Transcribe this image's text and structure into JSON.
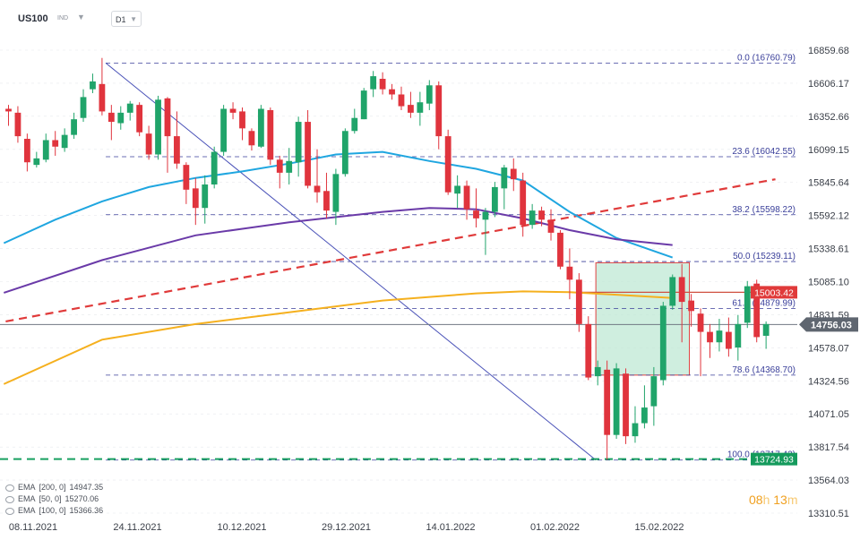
{
  "header": {
    "symbol": "US100",
    "category": "IND",
    "timeframe": "D1"
  },
  "chart_data": {
    "type": "candlestick",
    "y_ticks": [
      "16859.68",
      "16606.17",
      "16352.66",
      "16099.15",
      "15845.64",
      "15592.12",
      "15338.61",
      "15085.10",
      "14831.59",
      "14578.07",
      "14324.56",
      "14071.05",
      "13817.54",
      "13564.03",
      "13310.51"
    ],
    "x_ticks": [
      "08.11.2021",
      "24.11.2021",
      "10.12.2021",
      "29.12.2021",
      "14.01.2022",
      "01.02.2022",
      "15.02.2022"
    ],
    "current_price": "14756.03",
    "price_labels": [
      {
        "text": "15003.42",
        "value": 15003.42,
        "color": "#e03a3a"
      },
      {
        "text": "13724.93",
        "value": 13724.93,
        "color": "#149a5c"
      }
    ],
    "fib_levels": [
      {
        "label": "0.0 (16760.79)",
        "value": 16760.79
      },
      {
        "label": "23.6 (16042.55)",
        "value": 16042.55
      },
      {
        "label": "38.2 (15598.22)",
        "value": 15598.22
      },
      {
        "label": "50.0 (15239.11)",
        "value": 15239.11
      },
      {
        "label": "61.8 (14879.99)",
        "value": 14879.99
      },
      {
        "label": "78.6 (14368.70)",
        "value": 14368.7
      },
      {
        "label": "100.0 (13717.42)",
        "value": 13717.42
      }
    ],
    "candles": [
      [
        16410,
        16390,
        16280,
        16440
      ],
      [
        16380,
        16200,
        16150,
        16430
      ],
      [
        16180,
        16000,
        15930,
        16220
      ],
      [
        15980,
        16030,
        15960,
        16080
      ],
      [
        16020,
        16170,
        16000,
        16220
      ],
      [
        16170,
        16120,
        16050,
        16240
      ],
      [
        16110,
        16210,
        16080,
        16260
      ],
      [
        16210,
        16330,
        16180,
        16380
      ],
      [
        16340,
        16500,
        16310,
        16560
      ],
      [
        16560,
        16620,
        16530,
        16680
      ],
      [
        16600,
        16390,
        16360,
        16800
      ],
      [
        16380,
        16310,
        16170,
        16440
      ],
      [
        16300,
        16380,
        16250,
        16430
      ],
      [
        16380,
        16450,
        16320,
        16470
      ],
      [
        16440,
        16230,
        16200,
        16460
      ],
      [
        16220,
        16060,
        16020,
        16280
      ],
      [
        16060,
        16480,
        16020,
        16510
      ],
      [
        16490,
        16200,
        15920,
        16500
      ],
      [
        16200,
        15990,
        15950,
        16390
      ],
      [
        15980,
        15790,
        15680,
        16000
      ],
      [
        15800,
        15650,
        15520,
        15880
      ],
      [
        15650,
        15830,
        15530,
        15900
      ],
      [
        15830,
        16080,
        15800,
        16120
      ],
      [
        16080,
        16410,
        16050,
        16440
      ],
      [
        16410,
        16380,
        16330,
        16460
      ],
      [
        16390,
        16260,
        16170,
        16420
      ],
      [
        16240,
        16130,
        16090,
        16260
      ],
      [
        16120,
        16410,
        16110,
        16440
      ],
      [
        16400,
        16020,
        15980,
        16420
      ],
      [
        16020,
        15920,
        15800,
        16050
      ],
      [
        15920,
        16010,
        15830,
        16110
      ],
      [
        16000,
        16310,
        15890,
        16350
      ],
      [
        16310,
        15820,
        15800,
        16400
      ],
      [
        15820,
        15770,
        15690,
        16100
      ],
      [
        15780,
        15630,
        15570,
        15920
      ],
      [
        15620,
        15910,
        15520,
        15950
      ],
      [
        15910,
        16240,
        15890,
        16260
      ],
      [
        16240,
        16340,
        16220,
        16410
      ],
      [
        16330,
        16550,
        16330,
        16570
      ],
      [
        16560,
        16660,
        16500,
        16700
      ],
      [
        16640,
        16560,
        16520,
        16690
      ],
      [
        16560,
        16520,
        16480,
        16600
      ],
      [
        16520,
        16430,
        16400,
        16580
      ],
      [
        16440,
        16380,
        16340,
        16540
      ],
      [
        16380,
        16460,
        16280,
        16540
      ],
      [
        16450,
        16590,
        16400,
        16630
      ],
      [
        16590,
        16200,
        16100,
        16620
      ],
      [
        16200,
        15770,
        15750,
        16250
      ],
      [
        15760,
        15820,
        15650,
        15900
      ],
      [
        15820,
        15640,
        15560,
        15860
      ],
      [
        15630,
        15570,
        15500,
        15800
      ],
      [
        15560,
        15620,
        15290,
        15650
      ],
      [
        15620,
        15810,
        15580,
        15850
      ],
      [
        15800,
        15960,
        15640,
        15980
      ],
      [
        15950,
        15870,
        15780,
        16030
      ],
      [
        15860,
        15520,
        15430,
        15920
      ],
      [
        15520,
        15630,
        15490,
        15680
      ],
      [
        15630,
        15560,
        15510,
        15660
      ],
      [
        15560,
        15460,
        15400,
        15640
      ],
      [
        15460,
        15200,
        15180,
        15480
      ],
      [
        15200,
        15100,
        14950,
        15340
      ],
      [
        15100,
        14760,
        14700,
        15150
      ],
      [
        14760,
        14350,
        14330,
        14820
      ],
      [
        14360,
        14430,
        14290,
        14480
      ],
      [
        14410,
        13910,
        13720,
        14480
      ],
      [
        13910,
        14420,
        13880,
        14460
      ],
      [
        14380,
        13900,
        13840,
        14420
      ],
      [
        13900,
        14000,
        13850,
        14130
      ],
      [
        14000,
        14120,
        13960,
        14290
      ],
      [
        14130,
        14360,
        13980,
        14430
      ],
      [
        14330,
        14900,
        14290,
        14930
      ],
      [
        14900,
        15120,
        14870,
        15140
      ],
      [
        15120,
        14930,
        14620,
        15220
      ],
      [
        14940,
        14860,
        14740,
        14990
      ],
      [
        14840,
        14700,
        14360,
        14880
      ],
      [
        14700,
        14620,
        14500,
        14760
      ],
      [
        14620,
        14710,
        14550,
        14800
      ],
      [
        14700,
        14570,
        14510,
        14810
      ],
      [
        14580,
        14760,
        14480,
        14830
      ],
      [
        14770,
        15050,
        14730,
        15090
      ],
      [
        15070,
        14660,
        14620,
        15100
      ],
      [
        14670,
        14760,
        14570,
        14780
      ]
    ],
    "trend_lines": [
      {
        "style": "solid",
        "color": "#4a52b8",
        "points": [
          [
            10.4,
            16760.79
          ],
          [
            62.8,
            13717.42
          ]
        ]
      },
      {
        "style": "dashed",
        "color": "#e03a3a",
        "points": [
          [
            -0.3,
            14780
          ],
          [
            82,
            15870
          ]
        ]
      }
    ],
    "box": {
      "from": 62.8,
      "to": 72.8,
      "low": 14368.7,
      "high": 15230,
      "fill": "#bfe8d4",
      "border": "#e04040"
    },
    "ema": [
      {
        "label": "EMA",
        "params": "[200,  0]",
        "value": "14947.35",
        "color": "#f5b01e",
        "points": [
          [
            -0.5,
            14300
          ],
          [
            10,
            14640
          ],
          [
            20,
            14760
          ],
          [
            30,
            14850
          ],
          [
            40,
            14940
          ],
          [
            50,
            14995
          ],
          [
            55,
            15010
          ],
          [
            60,
            15005
          ],
          [
            65,
            14985
          ],
          [
            71,
            14960
          ]
        ]
      },
      {
        "label": "EMA",
        "params": "[50,  0]",
        "value": "15270.06",
        "color": "#1fa6e0",
        "points": [
          [
            -0.5,
            15380
          ],
          [
            5,
            15560
          ],
          [
            10,
            15700
          ],
          [
            15,
            15810
          ],
          [
            20,
            15880
          ],
          [
            25,
            15930
          ],
          [
            30,
            15990
          ],
          [
            35,
            16060
          ],
          [
            40,
            16080
          ],
          [
            45,
            16010
          ],
          [
            50,
            15950
          ],
          [
            55,
            15860
          ],
          [
            60,
            15620
          ],
          [
            65,
            15420
          ],
          [
            71,
            15270
          ]
        ]
      },
      {
        "label": "EMA",
        "params": "[100,  0]",
        "value": "15366.36",
        "color": "#6a3aa8",
        "points": [
          [
            -0.5,
            15000
          ],
          [
            10,
            15250
          ],
          [
            20,
            15440
          ],
          [
            30,
            15540
          ],
          [
            40,
            15620
          ],
          [
            45,
            15650
          ],
          [
            50,
            15640
          ],
          [
            55,
            15570
          ],
          [
            60,
            15480
          ],
          [
            65,
            15410
          ],
          [
            71,
            15366
          ]
        ]
      }
    ],
    "colors": {
      "up": "#20a46a",
      "down": "#e0343d",
      "grid": "#555b66",
      "axis_text": "#3a3f48",
      "fib": "#3a3f9a"
    }
  },
  "timer": {
    "hours": "08",
    "h_unit": "h",
    "minutes": "13",
    "m_unit": "m"
  }
}
